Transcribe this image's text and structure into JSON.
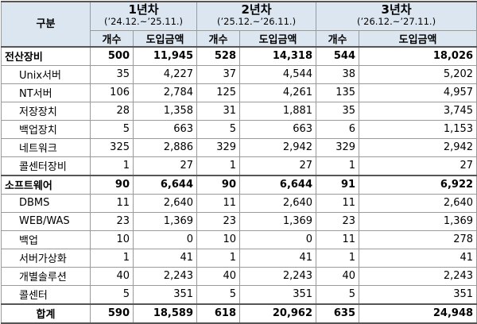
{
  "header": {
    "category_label": "구분",
    "count_label": "개수",
    "cost_label": "도입금액",
    "years": [
      {
        "title": "1년차",
        "period": "(’24.12.~’25.11.)"
      },
      {
        "title": "2년차",
        "period": "(’25.12.~’26.11.)"
      },
      {
        "title": "3년차",
        "period": "(’26.12.~’27.11.)"
      }
    ]
  },
  "rows": [
    {
      "type": "cat",
      "label": "전산장비",
      "values": [
        "500",
        "11,945",
        "528",
        "14,318",
        "544",
        "18,026"
      ]
    },
    {
      "type": "sub",
      "label": "Unix서버",
      "values": [
        "35",
        "4,227",
        "37",
        "4,544",
        "38",
        "5,202"
      ]
    },
    {
      "type": "sub",
      "label": "NT서버",
      "values": [
        "106",
        "2,784",
        "125",
        "4,261",
        "135",
        "4,957"
      ]
    },
    {
      "type": "sub",
      "label": "저장장치",
      "values": [
        "28",
        "1,358",
        "31",
        "1,881",
        "35",
        "3,745"
      ]
    },
    {
      "type": "sub",
      "label": "백업장치",
      "values": [
        "5",
        "663",
        "5",
        "663",
        "6",
        "1,153"
      ]
    },
    {
      "type": "sub",
      "label": "네트워크",
      "values": [
        "325",
        "2,886",
        "329",
        "2,942",
        "329",
        "2,942"
      ]
    },
    {
      "type": "sub",
      "label": "콜센터장비",
      "values": [
        "1",
        "27",
        "1",
        "27",
        "1",
        "27"
      ]
    },
    {
      "type": "cat",
      "label": "소프트웨어",
      "values": [
        "90",
        "6,644",
        "90",
        "6,644",
        "91",
        "6,922"
      ]
    },
    {
      "type": "sub",
      "label": "DBMS",
      "values": [
        "11",
        "2,640",
        "11",
        "2,640",
        "11",
        "2,640"
      ]
    },
    {
      "type": "sub",
      "label": "WEB/WAS",
      "values": [
        "23",
        "1,369",
        "23",
        "1,369",
        "23",
        "1,369"
      ]
    },
    {
      "type": "sub",
      "label": "백업",
      "values": [
        "10",
        "0",
        "10",
        "0",
        "11",
        "278"
      ]
    },
    {
      "type": "sub",
      "label": "서버가상화",
      "values": [
        "1",
        "41",
        "1",
        "41",
        "1",
        "41"
      ]
    },
    {
      "type": "sub",
      "label": "개별솔루션",
      "values": [
        "40",
        "2,243",
        "40",
        "2,243",
        "40",
        "2,243"
      ]
    },
    {
      "type": "sub",
      "label": "콜센터",
      "values": [
        "5",
        "351",
        "5",
        "351",
        "5",
        "351"
      ]
    },
    {
      "type": "total",
      "label": "합계",
      "values": [
        "590",
        "18,589",
        "618",
        "20,962",
        "635",
        "24,948"
      ]
    }
  ]
}
